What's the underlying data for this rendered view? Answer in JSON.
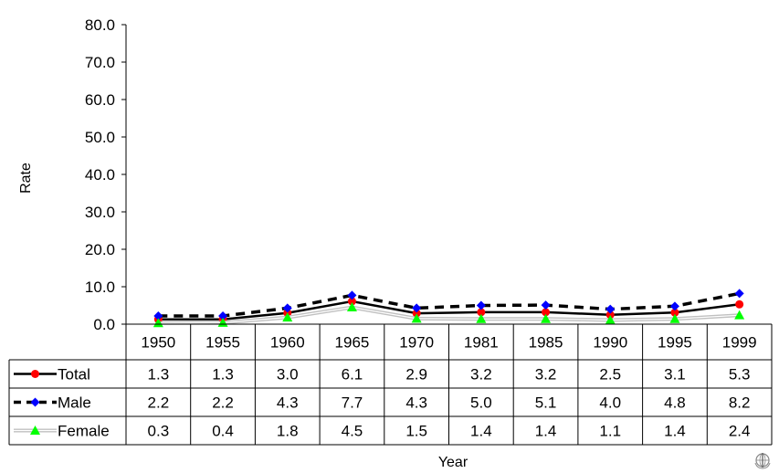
{
  "chart_data": {
    "type": "line",
    "categories": [
      "1950",
      "1955",
      "1960",
      "1965",
      "1970",
      "1981",
      "1985",
      "1990",
      "1995",
      "1999"
    ],
    "series": [
      {
        "name": "Total",
        "values": [
          1.3,
          1.3,
          3.0,
          6.1,
          2.9,
          3.2,
          3.2,
          2.5,
          3.1,
          5.3
        ],
        "color": "#000000",
        "marker": "circle",
        "marker_color": "#ff0000",
        "line_style": "solid"
      },
      {
        "name": "Male",
        "values": [
          2.2,
          2.2,
          4.3,
          7.7,
          4.3,
          5.0,
          5.1,
          4.0,
          4.8,
          8.2
        ],
        "color": "#000000",
        "marker": "diamond",
        "marker_color": "#0000ff",
        "line_style": "dashed"
      },
      {
        "name": "Female",
        "values": [
          0.3,
          0.4,
          1.8,
          4.5,
          1.5,
          1.4,
          1.4,
          1.1,
          1.4,
          2.4
        ],
        "color": "#c0c0c0",
        "marker": "triangle",
        "marker_color": "#00ff00",
        "line_style": "double"
      }
    ],
    "y_ticks": [
      "0.0",
      "10.0",
      "20.0",
      "30.0",
      "40.0",
      "50.0",
      "60.0",
      "70.0",
      "80.0"
    ],
    "ylim": [
      0,
      80
    ],
    "ylabel": "Rate",
    "xlabel": "Year",
    "grid": false,
    "legend": "data-table"
  },
  "emblem_icon": "who-emblem-icon"
}
